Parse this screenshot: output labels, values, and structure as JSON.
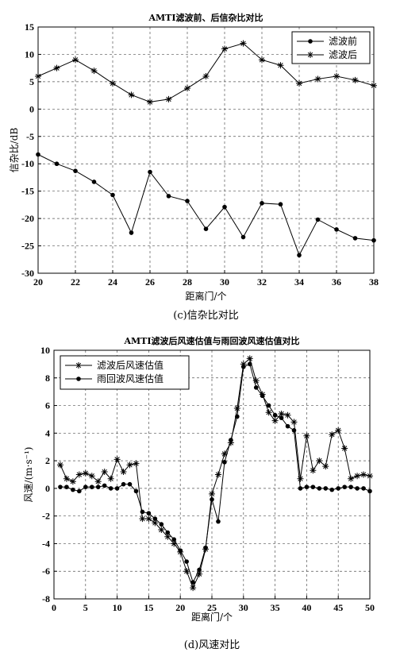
{
  "chart_data": [
    {
      "type": "line",
      "title": "AMTI滤波前、后信杂比对比",
      "xlabel": "距离门/个",
      "ylabel": "信杂比/dB",
      "caption": "(c)信杂比对比",
      "xlim": [
        20,
        38
      ],
      "ylim": [
        -30,
        15
      ],
      "xticks": [
        20,
        22,
        24,
        26,
        28,
        30,
        32,
        34,
        36,
        38
      ],
      "yticks": [
        -30,
        -25,
        -20,
        -15,
        -10,
        -5,
        0,
        5,
        10,
        15
      ],
      "grid": true,
      "legend_position": "top-right",
      "x": [
        20,
        21,
        22,
        23,
        24,
        25,
        26,
        27,
        28,
        29,
        30,
        31,
        32,
        33,
        34,
        35,
        36,
        37,
        38
      ],
      "series": [
        {
          "name": "滤波前",
          "marker": "dot",
          "values": [
            -8.3,
            -10,
            -11.3,
            -13.3,
            -15.7,
            -22.6,
            -11.5,
            -15.9,
            -16.8,
            -21.9,
            -17.9,
            -23.4,
            -17.2,
            -17.4,
            -26.7,
            -20.2,
            -22,
            -23.6,
            -24
          ]
        },
        {
          "name": "滤波后",
          "marker": "star",
          "values": [
            6,
            7.5,
            9,
            7,
            4.7,
            2.6,
            1.3,
            1.8,
            3.8,
            6,
            11,
            12,
            9,
            8,
            4.7,
            5.5,
            6,
            5.3,
            4.3
          ]
        }
      ]
    },
    {
      "type": "line",
      "title": "AMTI滤波后风速估值与雨回波风速估值对比",
      "xlabel": "距离门/个",
      "ylabel": "风速/(m·s⁻¹)",
      "caption": "(d)风速对比",
      "xlim": [
        0,
        50
      ],
      "ylim": [
        -8,
        10
      ],
      "xticks": [
        0,
        5,
        10,
        15,
        20,
        25,
        30,
        35,
        40,
        45,
        50
      ],
      "yticks": [
        -8,
        -6,
        -4,
        -2,
        0,
        2,
        4,
        6,
        8,
        10
      ],
      "grid": true,
      "legend_position": "top-left",
      "x": [
        1,
        2,
        3,
        4,
        5,
        6,
        7,
        8,
        9,
        10,
        11,
        12,
        13,
        14,
        15,
        16,
        17,
        18,
        19,
        20,
        21,
        22,
        23,
        24,
        25,
        26,
        27,
        28,
        29,
        30,
        31,
        32,
        33,
        34,
        35,
        36,
        37,
        38,
        39,
        40,
        41,
        42,
        43,
        44,
        45,
        46,
        47,
        48,
        49,
        50
      ],
      "series": [
        {
          "name": "滤波后风速估值",
          "marker": "star",
          "values": [
            1.7,
            0.7,
            0.5,
            1.0,
            1.1,
            0.9,
            0.5,
            1.2,
            0.7,
            2.1,
            1.2,
            1.7,
            1.8,
            -2.2,
            -2.2,
            -2.5,
            -3.0,
            -3.5,
            -4.0,
            -4.6,
            -6.0,
            -7.2,
            -6.2,
            -4.4,
            -0.4,
            1.0,
            2.5,
            3.3,
            5.8,
            9.0,
            9.4,
            7.8,
            6.8,
            5.5,
            4.9,
            5.4,
            5.3,
            4.8,
            0.7,
            3.8,
            1.3,
            2.0,
            1.6,
            3.9,
            4.2,
            2.9,
            0.7,
            0.9,
            1.0,
            0.9
          ]
        },
        {
          "name": "雨回波风速估值",
          "marker": "dot",
          "values": [
            0.1,
            0.1,
            -0.1,
            -0.2,
            0.1,
            0.1,
            0.1,
            0.2,
            0.0,
            0.0,
            0.3,
            0.3,
            -0.2,
            -1.7,
            -1.8,
            -2.2,
            -2.6,
            -3.2,
            -3.7,
            -4.5,
            -5.3,
            -6.8,
            -5.9,
            -4.3,
            -0.8,
            -2.4,
            1.9,
            3.5,
            5.2,
            8.8,
            9.0,
            7.3,
            6.7,
            6.0,
            5.3,
            5.1,
            4.5,
            4.2,
            0.0,
            0.1,
            0.1,
            0.0,
            0.0,
            -0.1,
            0.0,
            0.1,
            0.1,
            0.0,
            0.0,
            -0.2
          ]
        }
      ]
    }
  ]
}
